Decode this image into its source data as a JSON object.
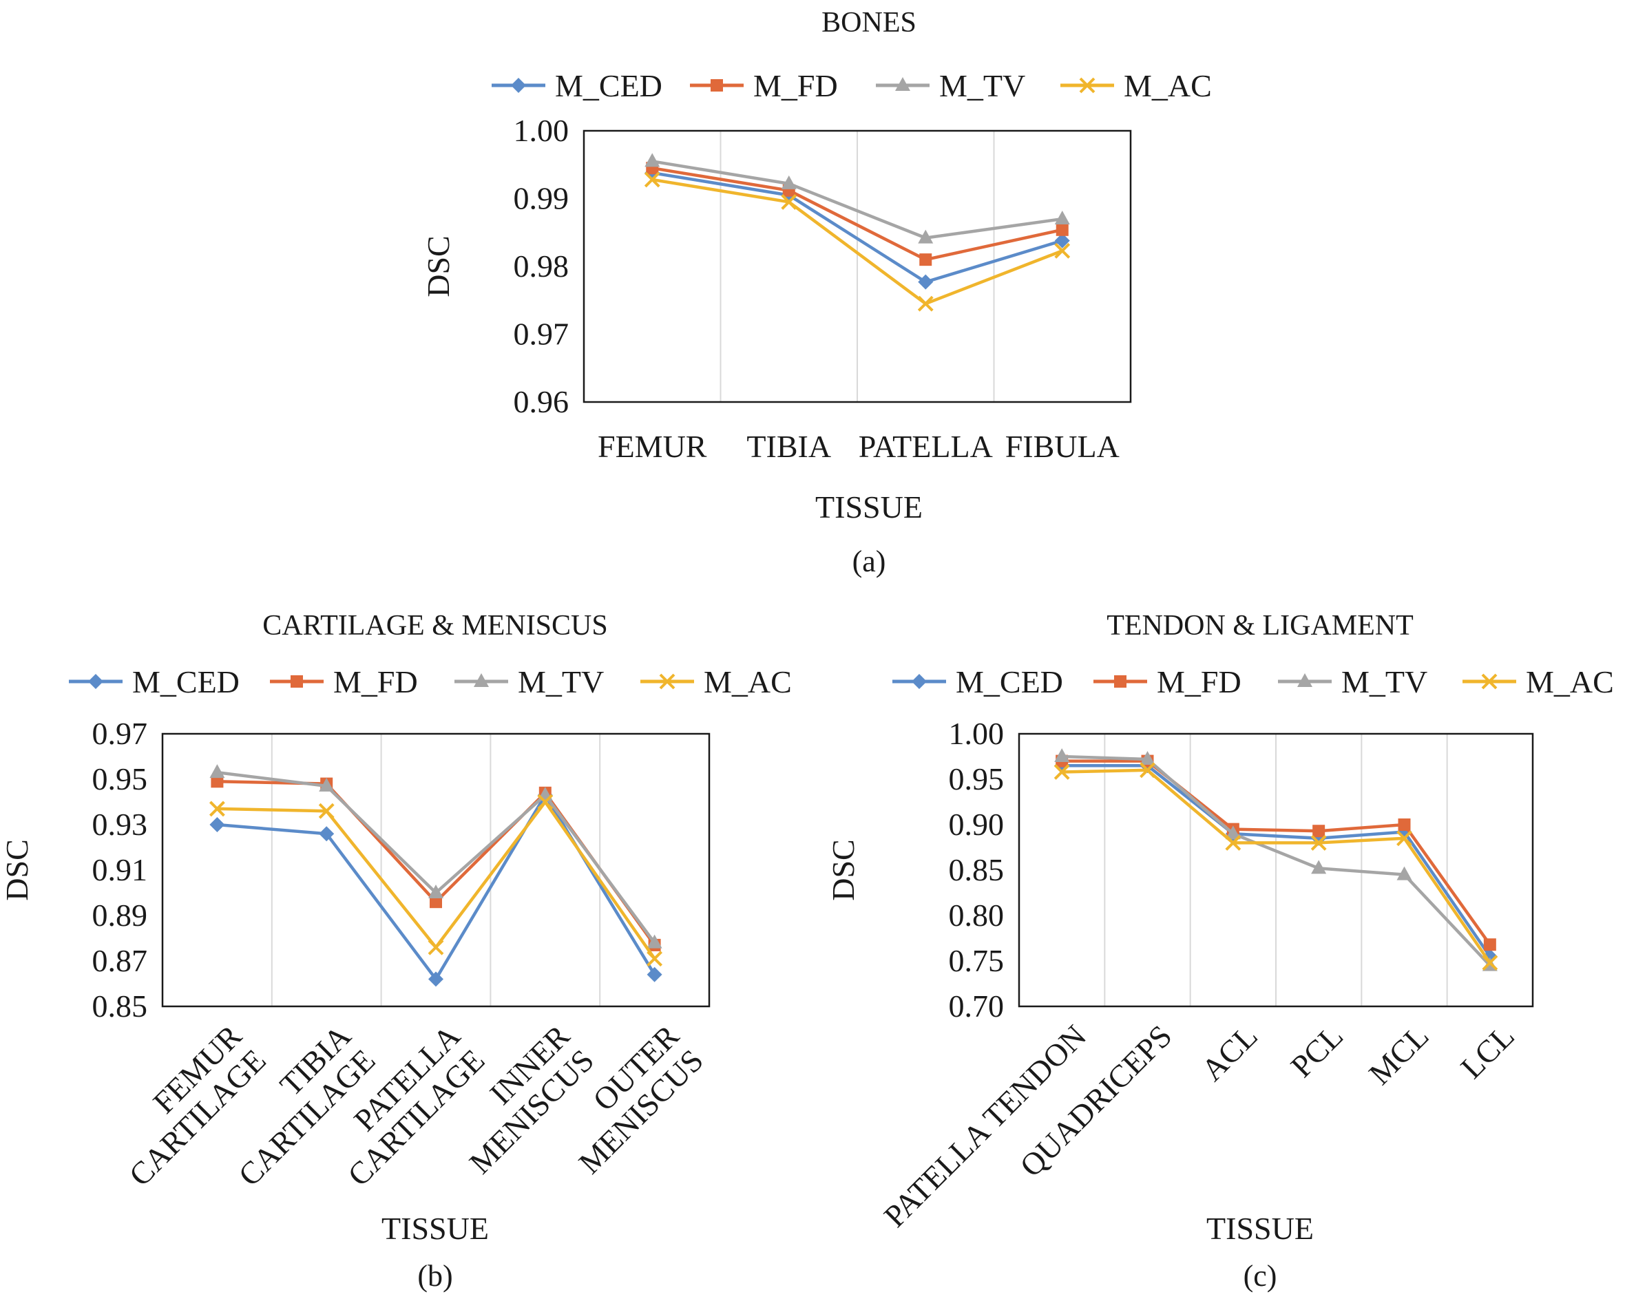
{
  "chart_data": [
    {
      "type": "line",
      "panel_label": "(a)",
      "title": "BONES",
      "xlabel": "TISSUE",
      "ylabel": "DSC",
      "ylim": [
        0.96,
        1.0
      ],
      "yticks": [
        "0.96",
        "0.97",
        "0.98",
        "0.99",
        "1.00"
      ],
      "categories": [
        [
          "FEMUR"
        ],
        [
          "TIBIA"
        ],
        [
          "PATELLA"
        ],
        [
          "FIBULA"
        ]
      ],
      "legend_position": "top",
      "grid": "vertical",
      "series": [
        {
          "name": "M_CED",
          "color": "#5b8bc9",
          "marker": "diamond",
          "values": [
            0.9938,
            0.9905,
            0.9777,
            0.9838
          ]
        },
        {
          "name": "M_FD",
          "color": "#e0693a",
          "marker": "square",
          "values": [
            0.9945,
            0.9912,
            0.981,
            0.9854
          ]
        },
        {
          "name": "M_TV",
          "color": "#a5a5a5",
          "marker": "triangle",
          "values": [
            0.9955,
            0.9922,
            0.9842,
            0.987
          ]
        },
        {
          "name": "M_AC",
          "color": "#f0b52c",
          "marker": "x",
          "values": [
            0.9928,
            0.9895,
            0.9745,
            0.9823
          ]
        }
      ]
    },
    {
      "type": "line",
      "panel_label": "(b)",
      "title": "CARTILAGE & MENISCUS",
      "xlabel": "TISSUE",
      "ylabel": "DSC",
      "ylim": [
        0.85,
        0.97
      ],
      "yticks": [
        "0.85",
        "0.87",
        "0.89",
        "0.91",
        "0.93",
        "0.95",
        "0.97"
      ],
      "categories": [
        [
          "FEMUR",
          "CARTILAGE"
        ],
        [
          "TIBIA",
          "CARTILAGE"
        ],
        [
          "PATELLA",
          "CARTILAGE"
        ],
        [
          "INNER",
          "MENISCUS"
        ],
        [
          "OUTER",
          "MENISCUS"
        ]
      ],
      "legend_position": "top",
      "grid": "vertical",
      "series": [
        {
          "name": "M_CED",
          "color": "#5b8bc9",
          "marker": "diamond",
          "values": [
            0.93,
            0.926,
            0.862,
            0.943,
            0.864
          ]
        },
        {
          "name": "M_FD",
          "color": "#e0693a",
          "marker": "square",
          "values": [
            0.949,
            0.948,
            0.896,
            0.944,
            0.877
          ]
        },
        {
          "name": "M_TV",
          "color": "#a5a5a5",
          "marker": "triangle",
          "values": [
            0.953,
            0.947,
            0.9,
            0.943,
            0.878
          ]
        },
        {
          "name": "M_AC",
          "color": "#f0b52c",
          "marker": "x",
          "values": [
            0.937,
            0.936,
            0.876,
            0.94,
            0.871
          ]
        }
      ]
    },
    {
      "type": "line",
      "panel_label": "(c)",
      "title": "TENDON & LIGAMENT",
      "xlabel": "TISSUE",
      "ylabel": "DSC",
      "ylim": [
        0.7,
        1.0
      ],
      "yticks": [
        "0.70",
        "0.75",
        "0.80",
        "0.85",
        "0.90",
        "0.95",
        "1.00"
      ],
      "categories": [
        [
          "PATELLA TENDON"
        ],
        [
          "QUADRICEPS"
        ],
        [
          "ACL"
        ],
        [
          "PCL"
        ],
        [
          "MCL"
        ],
        [
          "LCL"
        ]
      ],
      "legend_position": "top",
      "grid": "vertical",
      "series": [
        {
          "name": "M_CED",
          "color": "#5b8bc9",
          "marker": "diamond",
          "values": [
            0.965,
            0.965,
            0.89,
            0.885,
            0.892,
            0.755
          ]
        },
        {
          "name": "M_FD",
          "color": "#e0693a",
          "marker": "square",
          "values": [
            0.97,
            0.97,
            0.895,
            0.893,
            0.9,
            0.768
          ]
        },
        {
          "name": "M_TV",
          "color": "#a5a5a5",
          "marker": "triangle",
          "values": [
            0.975,
            0.972,
            0.89,
            0.852,
            0.845,
            0.745
          ]
        },
        {
          "name": "M_AC",
          "color": "#f0b52c",
          "marker": "x",
          "values": [
            0.958,
            0.96,
            0.88,
            0.88,
            0.885,
            0.748
          ]
        }
      ]
    }
  ]
}
